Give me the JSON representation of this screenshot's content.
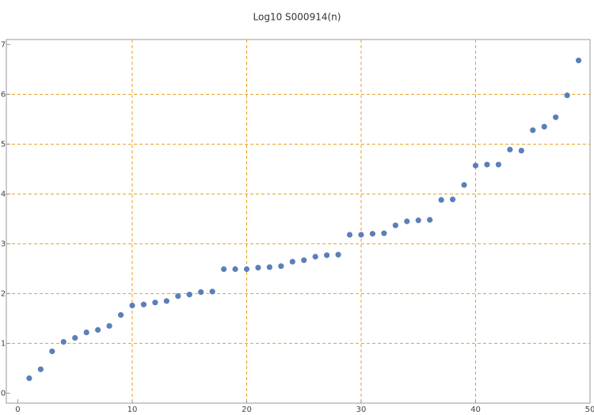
{
  "chart_data": {
    "type": "scatter",
    "title": "Log10 S000914(n)",
    "x": [
      1,
      2,
      3,
      4,
      5,
      6,
      7,
      8,
      9,
      10,
      11,
      12,
      13,
      14,
      15,
      16,
      17,
      18,
      19,
      20,
      21,
      22,
      23,
      24,
      25,
      26,
      27,
      28,
      29,
      30,
      31,
      32,
      33,
      34,
      35,
      36,
      37,
      38,
      39,
      40,
      41,
      42,
      43,
      44,
      45,
      46,
      47,
      48,
      49
    ],
    "values": [
      0.3,
      0.48,
      0.84,
      1.03,
      1.11,
      1.22,
      1.27,
      1.35,
      1.57,
      1.76,
      1.78,
      1.82,
      1.85,
      1.95,
      1.98,
      2.03,
      2.04,
      2.49,
      2.49,
      2.49,
      2.52,
      2.53,
      2.55,
      2.64,
      2.67,
      2.74,
      2.77,
      2.78,
      3.18,
      3.18,
      3.2,
      3.21,
      3.37,
      3.45,
      3.47,
      3.48,
      3.88,
      3.89,
      4.18,
      4.57,
      4.59,
      4.59,
      4.89,
      4.87,
      5.28,
      5.35,
      5.54,
      5.98,
      6.68
    ],
    "color": "#5b7fb8",
    "xlim": [
      -1,
      50
    ],
    "ylim": [
      -0.2,
      7.1
    ],
    "xticks": [
      0,
      10,
      20,
      30,
      40,
      50
    ],
    "yticks": [
      0,
      1,
      2,
      3,
      4,
      5,
      6,
      7
    ],
    "xgrid": [
      10,
      20,
      30,
      40
    ],
    "ygrid": [
      1,
      2,
      3,
      4,
      5,
      6
    ]
  }
}
